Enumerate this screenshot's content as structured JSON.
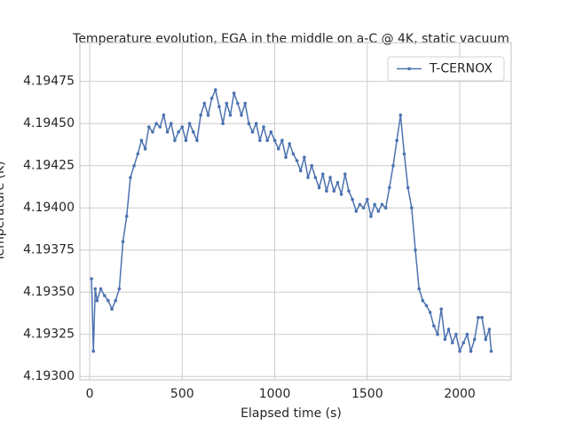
{
  "chart_data": {
    "type": "line",
    "title": "Temperature evolution, EGA in the middle on a-C @ 4K, static vacuum",
    "xlabel": "Elapsed time (s)",
    "ylabel": "Temperature (K)",
    "x": [
      10,
      20,
      30,
      40,
      60,
      80,
      100,
      120,
      140,
      160,
      180,
      200,
      220,
      240,
      260,
      280,
      300,
      320,
      340,
      360,
      380,
      400,
      420,
      440,
      460,
      480,
      500,
      520,
      540,
      560,
      580,
      600,
      620,
      640,
      660,
      680,
      700,
      720,
      740,
      760,
      780,
      800,
      820,
      840,
      860,
      880,
      900,
      920,
      940,
      960,
      980,
      1000,
      1020,
      1040,
      1060,
      1080,
      1100,
      1120,
      1140,
      1160,
      1180,
      1200,
      1220,
      1240,
      1260,
      1280,
      1300,
      1320,
      1340,
      1360,
      1380,
      1400,
      1420,
      1440,
      1460,
      1480,
      1500,
      1520,
      1540,
      1560,
      1580,
      1600,
      1620,
      1640,
      1660,
      1680,
      1700,
      1720,
      1740,
      1760,
      1780,
      1800,
      1820,
      1840,
      1860,
      1880,
      1900,
      1920,
      1940,
      1960,
      1980,
      2000,
      2020,
      2040,
      2060,
      2080,
      2100,
      2120,
      2140,
      2160,
      2170
    ],
    "series": [
      {
        "name": "T-CERNOX",
        "color": "#4c72b0",
        "values": [
          4.19358,
          4.19315,
          4.19352,
          4.19345,
          4.19352,
          4.19348,
          4.19345,
          4.1934,
          4.19345,
          4.19352,
          4.1938,
          4.19395,
          4.19418,
          4.19425,
          4.19432,
          4.1944,
          4.19435,
          4.19448,
          4.19445,
          4.1945,
          4.19448,
          4.19455,
          4.19445,
          4.1945,
          4.1944,
          4.19445,
          4.19448,
          4.1944,
          4.1945,
          4.19445,
          4.1944,
          4.19455,
          4.19462,
          4.19455,
          4.19465,
          4.1947,
          4.1946,
          4.1945,
          4.19462,
          4.19455,
          4.19468,
          4.19462,
          4.19455,
          4.19462,
          4.1945,
          4.19445,
          4.1945,
          4.1944,
          4.19448,
          4.1944,
          4.19445,
          4.1944,
          4.19435,
          4.1944,
          4.1943,
          4.19438,
          4.19432,
          4.19428,
          4.19422,
          4.1943,
          4.19418,
          4.19425,
          4.19418,
          4.19412,
          4.1942,
          4.1941,
          4.19418,
          4.1941,
          4.19415,
          4.19408,
          4.1942,
          4.1941,
          4.19405,
          4.19398,
          4.19402,
          4.194,
          4.19405,
          4.19395,
          4.19402,
          4.19398,
          4.19402,
          4.194,
          4.19412,
          4.19425,
          4.1944,
          4.19455,
          4.19432,
          4.19412,
          4.194,
          4.19375,
          4.19352,
          4.19345,
          4.19342,
          4.19338,
          4.1933,
          4.19325,
          4.1934,
          4.19322,
          4.19328,
          4.1932,
          4.19325,
          4.19315,
          4.1932,
          4.19325,
          4.19315,
          4.19322,
          4.19335,
          4.19335,
          4.19322,
          4.19328,
          4.19315
        ]
      }
    ],
    "xlim": [
      -53,
      2278
    ],
    "ylim": [
      4.19298,
      4.19498
    ],
    "xticks": [
      0,
      500,
      1000,
      1500,
      2000
    ],
    "yticks": [
      {
        "value": 4.193,
        "label": "4.19300"
      },
      {
        "value": 4.19325,
        "label": "4.19325"
      },
      {
        "value": 4.1935,
        "label": "4.19350"
      },
      {
        "value": 4.19375,
        "label": "4.19375"
      },
      {
        "value": 4.194,
        "label": "4.19400"
      },
      {
        "value": 4.19425,
        "label": "4.19425"
      },
      {
        "value": 4.1945,
        "label": "4.19450"
      },
      {
        "value": 4.19475,
        "label": "4.19475"
      }
    ],
    "grid": true,
    "legend": "upper right"
  }
}
